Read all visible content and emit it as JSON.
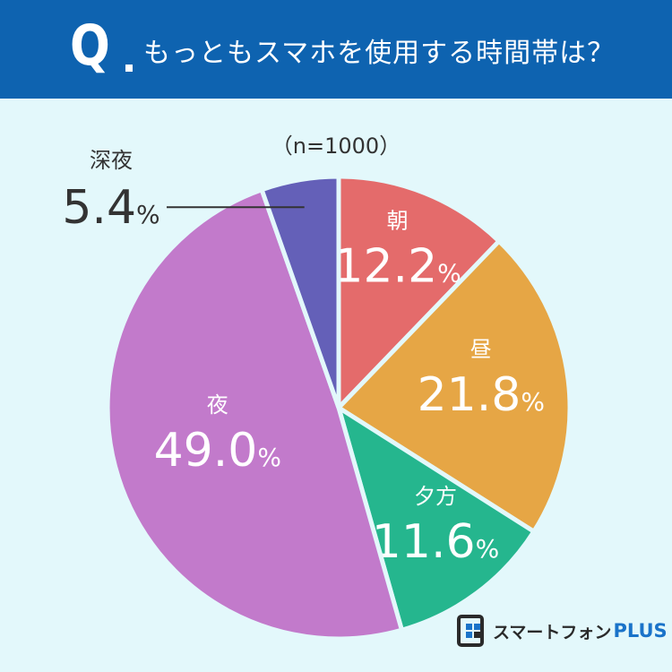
{
  "header": {
    "q_mark": "Q",
    "question": "もっともスマホを使用する時間帯は？"
  },
  "sample": "（n=1000）",
  "logo": {
    "text_jp": "スマートフォン",
    "text_en": "PLUS"
  },
  "colors": {
    "header_bg": "#0e63b0",
    "page_bg": "#e3f8fb"
  },
  "chart_data": {
    "type": "pie",
    "title": "もっともスマホを使用する時間帯は？",
    "slices": [
      {
        "label": "朝",
        "value": 12.2,
        "color": "#e46b6b"
      },
      {
        "label": "昼",
        "value": 21.8,
        "color": "#e6a645"
      },
      {
        "label": "夕方",
        "value": 11.6,
        "color": "#25b68e"
      },
      {
        "label": "夜",
        "value": 49.0,
        "color": "#c27acb"
      },
      {
        "label": "深夜",
        "value": 5.4,
        "color": "#6460b8"
      }
    ],
    "unit": "%"
  }
}
